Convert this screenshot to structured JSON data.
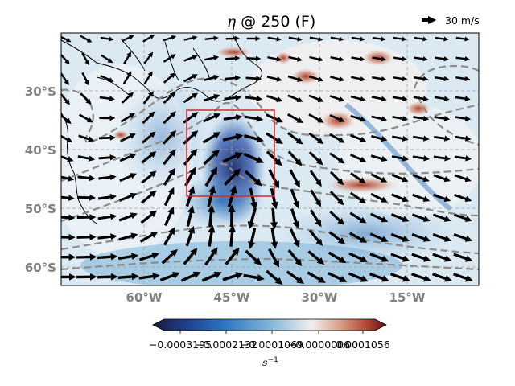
{
  "figure": {
    "title_symbol": "η",
    "title_rest": " @ 250 (F)",
    "quiver_key_label": "30 m/s"
  },
  "map": {
    "lat_labels": [
      "30°S",
      "40°S",
      "50°S",
      "60°S"
    ],
    "lon_labels": [
      "60°W",
      "45°W",
      "30°W",
      "15°W"
    ],
    "grid_lines": true,
    "highlight_box_color": "#d62728",
    "contour_color": "#8c8c8c",
    "colormap": "balance",
    "colormap_stops": [
      "#1b1a3a",
      "#1f3e8c",
      "#2a74c0",
      "#7fb4d8",
      "#f2efee",
      "#d9a08a",
      "#b0452e",
      "#5e0f1a"
    ]
  },
  "colorbar": {
    "tick_labels": [
      "−0.0003195",
      "−0.0002132",
      "−0.0001069",
      "−0.0000006",
      "0.0001056"
    ],
    "unit": "s⁻¹",
    "unit_base": "s",
    "unit_exp": "−1"
  }
}
